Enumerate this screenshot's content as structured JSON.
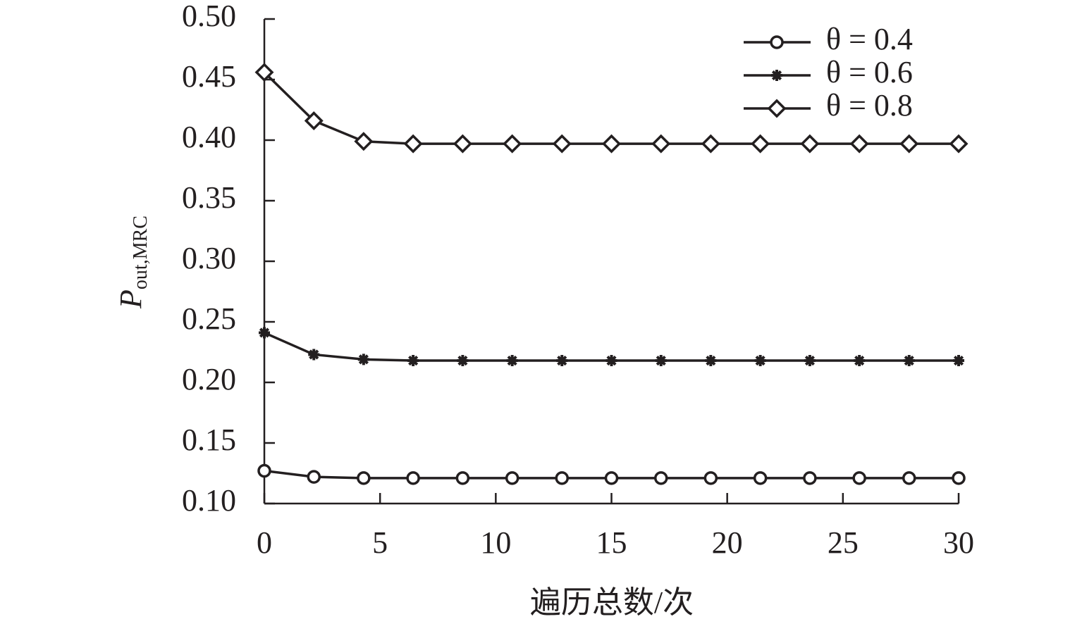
{
  "chart_data": {
    "type": "line",
    "ylabel": "P",
    "ylabel_subscript": "out,MRC",
    "xlabel": "遍历总数/次",
    "x": [
      0,
      2.14,
      4.29,
      6.43,
      8.57,
      10.71,
      12.86,
      15,
      17.14,
      19.29,
      21.43,
      23.57,
      25.71,
      27.86,
      30
    ],
    "series": [
      {
        "name": "θ = 0.4",
        "color": "#231f20",
        "marker": "circle",
        "values": [
          0.127,
          0.122,
          0.121,
          0.121,
          0.121,
          0.121,
          0.121,
          0.121,
          0.121,
          0.121,
          0.121,
          0.121,
          0.121,
          0.121,
          0.121
        ]
      },
      {
        "name": "θ = 0.6",
        "color": "#231f20",
        "marker": "star",
        "values": [
          0.241,
          0.223,
          0.219,
          0.218,
          0.218,
          0.218,
          0.218,
          0.218,
          0.218,
          0.218,
          0.218,
          0.218,
          0.218,
          0.218,
          0.218
        ]
      },
      {
        "name": "θ = 0.8",
        "color": "#231f20",
        "marker": "diamond",
        "values": [
          0.456,
          0.416,
          0.399,
          0.397,
          0.397,
          0.397,
          0.397,
          0.397,
          0.397,
          0.397,
          0.397,
          0.397,
          0.397,
          0.397,
          0.397
        ]
      }
    ],
    "xlim": [
      0,
      30
    ],
    "xticks": [
      0,
      5,
      10,
      15,
      20,
      25,
      30
    ],
    "ylim": [
      0.1,
      0.5
    ],
    "yticks": [
      {
        "value": 0.1,
        "label": "0.10"
      },
      0.15,
      {
        "value": 0.2,
        "label": "0.20"
      },
      0.25,
      {
        "value": 0.3,
        "label": "0.30"
      },
      0.35,
      {
        "value": 0.4,
        "label": "0.40"
      },
      0.45,
      {
        "value": 0.5,
        "label": "0.50"
      }
    ],
    "legend": "upper-right",
    "grid": false
  }
}
